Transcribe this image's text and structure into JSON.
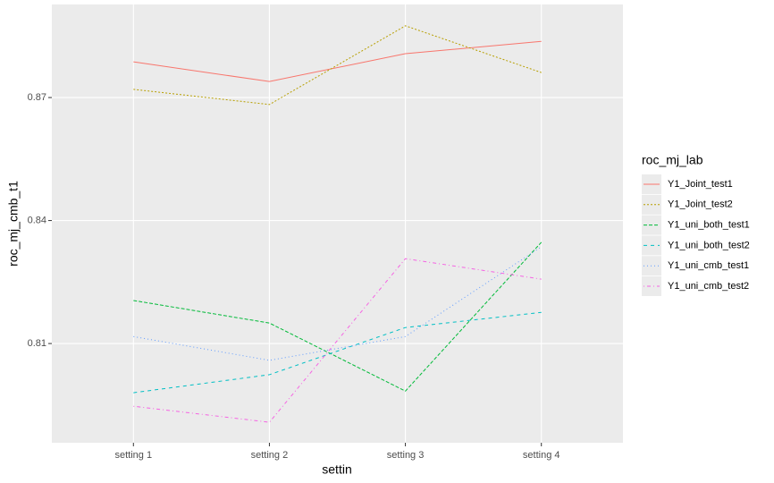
{
  "chart_data": {
    "type": "line",
    "x_label": "settin",
    "y_label": "roc_mj_cmb_t1",
    "categories": [
      "setting 1",
      "setting 2",
      "setting 3",
      "setting 4"
    ],
    "ylim": [
      0.7858,
      0.8927
    ],
    "yticks": [
      0.81,
      0.84,
      0.87
    ],
    "grid": true,
    "legend_title": "roc_mj_lab",
    "legend_position": "right",
    "series": [
      {
        "name": "Y1_Joint_test1",
        "color": "#F8766D",
        "linetype": "solid",
        "values": [
          0.8787,
          0.8739,
          0.8807,
          0.8837
        ]
      },
      {
        "name": "Y1_Joint_test2",
        "color": "#B79F00",
        "linetype": "22",
        "values": [
          0.872,
          0.8683,
          0.8875,
          0.8761
        ]
      },
      {
        "name": "Y1_uni_both_test1",
        "color": "#00BA38",
        "linetype": "42",
        "values": [
          0.8205,
          0.815,
          0.7984,
          0.8347
        ]
      },
      {
        "name": "Y1_uni_both_test2",
        "color": "#00BFC4",
        "linetype": "44",
        "values": [
          0.798,
          0.8024,
          0.8139,
          0.8176
        ]
      },
      {
        "name": "Y1_uni_cmb_test1",
        "color": "#619CFF",
        "linetype": "13",
        "values": [
          0.8117,
          0.8059,
          0.8117,
          0.8336
        ]
      },
      {
        "name": "Y1_uni_cmb_test2",
        "color": "#F564E3",
        "linetype": "1343",
        "values": [
          0.7947,
          0.7908,
          0.8307,
          0.8257
        ]
      }
    ]
  }
}
